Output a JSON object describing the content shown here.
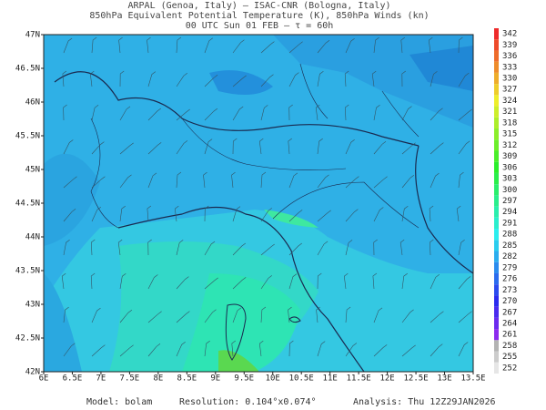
{
  "header": {
    "lines": [
      "ARPAL (Genoa, Italy)  –  ISAC-CNR (Bologna, Italy)",
      "850hPa Equivalent Potential Temperature (K), 850hPa Winds (kn)",
      "00 UTC Sun 01 FEB  –  τ = 60h"
    ]
  },
  "axes": {
    "x_labels": [
      "6E",
      "6.5E",
      "7E",
      "7.5E",
      "8E",
      "8.5E",
      "9E",
      "9.5E",
      "10E",
      "10.5E",
      "11E",
      "11.5E",
      "12E",
      "12.5E",
      "13E",
      "13.5E"
    ],
    "y_labels": [
      "47N",
      "46.5N",
      "46N",
      "45.5N",
      "45N",
      "44.5N",
      "44N",
      "43.5N",
      "43N",
      "42.5N",
      "42N"
    ]
  },
  "colorbar": {
    "labels": [
      342,
      339,
      336,
      333,
      330,
      327,
      324,
      321,
      318,
      315,
      312,
      309,
      306,
      303,
      300,
      297,
      294,
      291,
      288,
      285,
      282,
      279,
      276,
      273,
      270,
      267,
      264,
      261,
      258,
      255,
      252
    ]
  },
  "footer": {
    "model": "Model: bolam",
    "resolution": "Resolution: 0.104°x0.074°",
    "analysis": "Analysis: Thu 12Z29JAN2026"
  }
}
